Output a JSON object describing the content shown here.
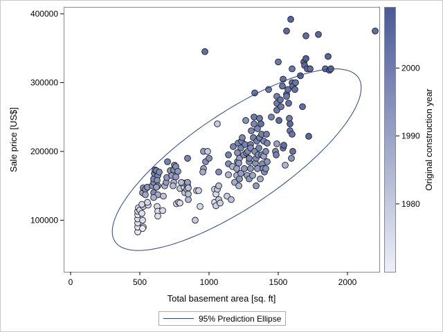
{
  "chart_data": {
    "type": "scatter",
    "xlabel": "Total basement area [sq. ft]",
    "ylabel": "Sale price [US$]",
    "xlim": [
      -50,
      2230
    ],
    "ylim": [
      25000,
      410000
    ],
    "x_ticks": [
      "0",
      "500",
      "1000",
      "1500",
      "2000"
    ],
    "x_tick_values": [
      0,
      500,
      1000,
      1500,
      2000
    ],
    "y_ticks": [
      "100000",
      "200000",
      "300000",
      "400000"
    ],
    "y_tick_values": [
      100000,
      200000,
      300000,
      400000
    ],
    "grid": false,
    "colorbar": {
      "label": "Original construction year",
      "range": [
        1970,
        2009
      ],
      "ticks": [
        "1980",
        "1990",
        "2000"
      ],
      "tick_values": [
        1980,
        1990,
        2000
      ],
      "color_low": "#eef0f8",
      "color_high": "#4a5a96"
    },
    "legend": {
      "position": "bottom",
      "entries": [
        "95% Prediction Ellipse"
      ]
    },
    "ellipse": {
      "center": [
        1200,
        188000
      ],
      "color": "#24418f"
    },
    "points": [
      [
        485,
        83000,
        1972
      ],
      [
        485,
        90000,
        1973
      ],
      [
        485,
        96000,
        1975
      ],
      [
        485,
        102000,
        1974
      ],
      [
        485,
        108000,
        1972
      ],
      [
        485,
        113000,
        1976
      ],
      [
        490,
        118000,
        1973
      ],
      [
        500,
        115000,
        1977
      ],
      [
        515,
        110000,
        1974
      ],
      [
        520,
        100000,
        1975
      ],
      [
        525,
        90000,
        1972
      ],
      [
        520,
        88000,
        1971
      ],
      [
        525,
        120000,
        1978
      ],
      [
        515,
        123000,
        1976
      ],
      [
        560,
        122000,
        1975
      ],
      [
        555,
        126000,
        1977
      ],
      [
        520,
        140000,
        1990
      ],
      [
        525,
        147000,
        1992
      ],
      [
        540,
        145000,
        1995
      ],
      [
        555,
        148000,
        1993
      ],
      [
        540,
        137000,
        1989
      ],
      [
        600,
        140000,
        1996
      ],
      [
        590,
        150000,
        1994
      ],
      [
        600,
        155000,
        1996
      ],
      [
        600,
        160000,
        1997
      ],
      [
        605,
        168000,
        1998
      ],
      [
        610,
        173000,
        1999
      ],
      [
        620,
        172000,
        1998
      ],
      [
        630,
        165000,
        1997
      ],
      [
        625,
        158000,
        1995
      ],
      [
        640,
        170000,
        1997
      ],
      [
        630,
        150000,
        1993
      ],
      [
        620,
        148000,
        1990
      ],
      [
        630,
        137000,
        1988
      ],
      [
        600,
        133000,
        1986
      ],
      [
        625,
        120000,
        1976
      ],
      [
        630,
        113000,
        1975
      ],
      [
        630,
        106000,
        1974
      ],
      [
        665,
        114000,
        1976
      ],
      [
        670,
        135000,
        1982
      ],
      [
        680,
        150000,
        1985
      ],
      [
        690,
        155000,
        1992
      ],
      [
        695,
        162000,
        1993
      ],
      [
        700,
        185000,
        1999
      ],
      [
        720,
        172000,
        1994
      ],
      [
        730,
        165000,
        1993
      ],
      [
        745,
        155000,
        1985
      ],
      [
        740,
        150000,
        1984
      ],
      [
        745,
        173000,
        1995
      ],
      [
        750,
        180000,
        1996
      ],
      [
        760,
        178000,
        1995
      ],
      [
        760,
        163000,
        1992
      ],
      [
        775,
        171000,
        1993
      ],
      [
        765,
        124000,
        1975
      ],
      [
        780,
        126000,
        1977
      ],
      [
        790,
        125000,
        1976
      ],
      [
        790,
        146000,
        1980
      ],
      [
        820,
        148000,
        1978
      ],
      [
        820,
        154000,
        1982
      ],
      [
        800,
        155000,
        1984
      ],
      [
        825,
        140000,
        1981
      ],
      [
        840,
        145000,
        1982
      ],
      [
        845,
        150000,
        1990
      ],
      [
        845,
        155000,
        1991
      ],
      [
        850,
        130000,
        1984
      ],
      [
        850,
        138000,
        1983
      ],
      [
        850,
        147000,
        1982
      ],
      [
        845,
        190000,
        1998
      ],
      [
        900,
        100000,
        1980
      ],
      [
        910,
        143000,
        1979
      ],
      [
        935,
        120000,
        1976
      ],
      [
        925,
        143000,
        1978
      ],
      [
        960,
        175000,
        1990
      ],
      [
        955,
        170000,
        1988
      ],
      [
        960,
        200000,
        1991
      ],
      [
        975,
        185000,
        1995
      ],
      [
        990,
        200000,
        1980
      ],
      [
        1000,
        190000,
        1995
      ],
      [
        1040,
        145000,
        1974
      ],
      [
        1040,
        126000,
        1975
      ],
      [
        1050,
        121000,
        1978
      ],
      [
        1050,
        138000,
        1976
      ],
      [
        1060,
        145000,
        1980
      ],
      [
        1070,
        150000,
        1982
      ],
      [
        1070,
        130000,
        1979
      ],
      [
        1080,
        125000,
        1978
      ],
      [
        1070,
        170000,
        1996
      ],
      [
        1060,
        240000,
        1980
      ],
      [
        970,
        345000,
        2003
      ],
      [
        1130,
        135000,
        1980
      ],
      [
        1140,
        166000,
        1985
      ],
      [
        1140,
        182000,
        1996
      ],
      [
        1140,
        195000,
        1999
      ],
      [
        1160,
        130000,
        1982
      ],
      [
        1170,
        178000,
        1985
      ],
      [
        1175,
        207000,
        1998
      ],
      [
        1185,
        155000,
        1988
      ],
      [
        1200,
        165000,
        1986
      ],
      [
        1200,
        175000,
        1989
      ],
      [
        1205,
        185000,
        1996
      ],
      [
        1205,
        198000,
        1994
      ],
      [
        1210,
        212000,
        1997
      ],
      [
        1215,
        150000,
        1985
      ],
      [
        1220,
        190000,
        1990
      ],
      [
        1215,
        183000,
        1992
      ],
      [
        1220,
        160000,
        1993
      ],
      [
        1230,
        168000,
        1991
      ],
      [
        1230,
        205000,
        1998
      ],
      [
        1235,
        215000,
        1996
      ],
      [
        1240,
        220000,
        1997
      ],
      [
        1250,
        195000,
        1995
      ],
      [
        1255,
        175000,
        1992
      ],
      [
        1260,
        210000,
        1999
      ],
      [
        1265,
        245000,
        1994
      ],
      [
        1270,
        198000,
        1996
      ],
      [
        1275,
        165000,
        1990
      ],
      [
        1280,
        200000,
        1996
      ],
      [
        1290,
        185000,
        1995
      ],
      [
        1290,
        160000,
        1993
      ],
      [
        1290,
        190000,
        1997
      ],
      [
        1300,
        210000,
        1999
      ],
      [
        1305,
        230000,
        1998
      ],
      [
        1300,
        175000,
        1993
      ],
      [
        1300,
        205000,
        1996
      ],
      [
        1315,
        165000,
        1989
      ],
      [
        1320,
        220000,
        1998
      ],
      [
        1325,
        240000,
        1997
      ],
      [
        1325,
        250000,
        2001
      ],
      [
        1330,
        200000,
        1995
      ],
      [
        1330,
        285000,
        2002
      ],
      [
        1335,
        183000,
        1993
      ],
      [
        1340,
        190000,
        1996
      ],
      [
        1340,
        150000,
        1992
      ],
      [
        1350,
        175000,
        1992
      ],
      [
        1350,
        233000,
        1997
      ],
      [
        1345,
        215000,
        1999
      ],
      [
        1355,
        195000,
        1996
      ],
      [
        1360,
        205000,
        1998
      ],
      [
        1365,
        220000,
        1998
      ],
      [
        1365,
        248000,
        2001
      ],
      [
        1370,
        160000,
        1988
      ],
      [
        1375,
        240000,
        2003
      ],
      [
        1380,
        195000,
        1998
      ],
      [
        1385,
        182000,
        1996
      ],
      [
        1380,
        225000,
        1999
      ],
      [
        1390,
        175000,
        1994
      ],
      [
        1395,
        215000,
        1997
      ],
      [
        1395,
        193000,
        1990
      ],
      [
        1400,
        170000,
        1995
      ],
      [
        1410,
        200000,
        1996
      ],
      [
        1410,
        175000,
        1994
      ],
      [
        1415,
        225000,
        1999
      ],
      [
        1420,
        212000,
        1998
      ],
      [
        1430,
        290000,
        2001
      ],
      [
        1420,
        185000,
        1994
      ],
      [
        1450,
        250000,
        1998
      ],
      [
        1480,
        200000,
        1996
      ],
      [
        1485,
        195000,
        1999
      ],
      [
        1490,
        260000,
        2001
      ],
      [
        1490,
        270000,
        2000
      ],
      [
        1490,
        280000,
        1999
      ],
      [
        1490,
        211000,
        1990
      ],
      [
        1500,
        330000,
        2001
      ],
      [
        1505,
        245000,
        2004
      ],
      [
        1515,
        275000,
        2002
      ],
      [
        1520,
        265000,
        2001
      ],
      [
        1530,
        295000,
        2002
      ],
      [
        1535,
        305000,
        2003
      ],
      [
        1535,
        205000,
        2002
      ],
      [
        1540,
        209000,
        2004
      ],
      [
        1550,
        180000,
        1985
      ],
      [
        1560,
        283000,
        2002
      ],
      [
        1560,
        280000,
        2001
      ],
      [
        1570,
        290000,
        2002
      ],
      [
        1560,
        375000,
        2005
      ],
      [
        1575,
        270000,
        2003
      ],
      [
        1580,
        248000,
        2000
      ],
      [
        1585,
        240000,
        2005
      ],
      [
        1585,
        230000,
        2001
      ],
      [
        1595,
        190000,
        1994
      ],
      [
        1590,
        392000,
        2006
      ],
      [
        1600,
        225000,
        2002
      ],
      [
        1605,
        200000,
        2003
      ],
      [
        1600,
        320000,
        2001
      ],
      [
        1600,
        300000,
        2002
      ],
      [
        1605,
        295000,
        2004
      ],
      [
        1620,
        290000,
        2003
      ],
      [
        1625,
        300000,
        2002
      ],
      [
        1660,
        310000,
        2006
      ],
      [
        1675,
        265000,
        2004
      ],
      [
        1685,
        330000,
        2006
      ],
      [
        1690,
        325000,
        2005
      ],
      [
        1700,
        335000,
        2007
      ],
      [
        1700,
        368000,
        2004
      ],
      [
        1710,
        320000,
        2003
      ],
      [
        1720,
        222000,
        2005
      ],
      [
        1730,
        320000,
        2004
      ],
      [
        1790,
        370000,
        2005
      ],
      [
        1840,
        320000,
        2003
      ],
      [
        1860,
        338000,
        2006
      ],
      [
        1870,
        318000,
        2006
      ],
      [
        1880,
        320000,
        2005
      ],
      [
        2200,
        375000,
        2004
      ]
    ]
  }
}
